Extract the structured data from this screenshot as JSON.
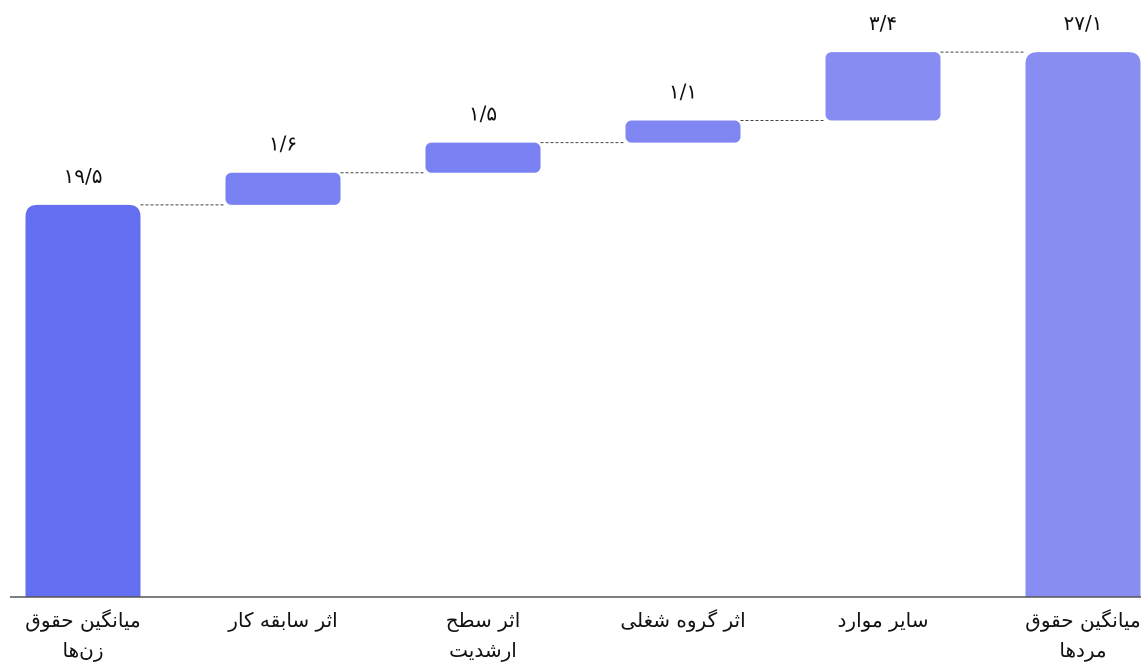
{
  "chart_data": {
    "type": "waterfall",
    "categories": [
      "میانگین حقوق زن‌ها",
      "اثر سابقه کار",
      "اثر سطح ارشدیت",
      "اثر گروه شغلی",
      "سایر موارد",
      "میانگین حقوق مردها"
    ],
    "values": [
      19.5,
      1.6,
      1.5,
      1.1,
      3.4,
      27.1
    ],
    "value_labels": [
      "۱۹/۵",
      "۱/۶",
      "۱/۵",
      "۱/۱",
      "۳/۴",
      "۲۷/۱"
    ],
    "colors": [
      "#636ef0",
      "#7a81f2",
      "#7a81f2",
      "#7f86f2",
      "#868cf2",
      "#888df2"
    ],
    "ylim": [
      0,
      28
    ]
  }
}
